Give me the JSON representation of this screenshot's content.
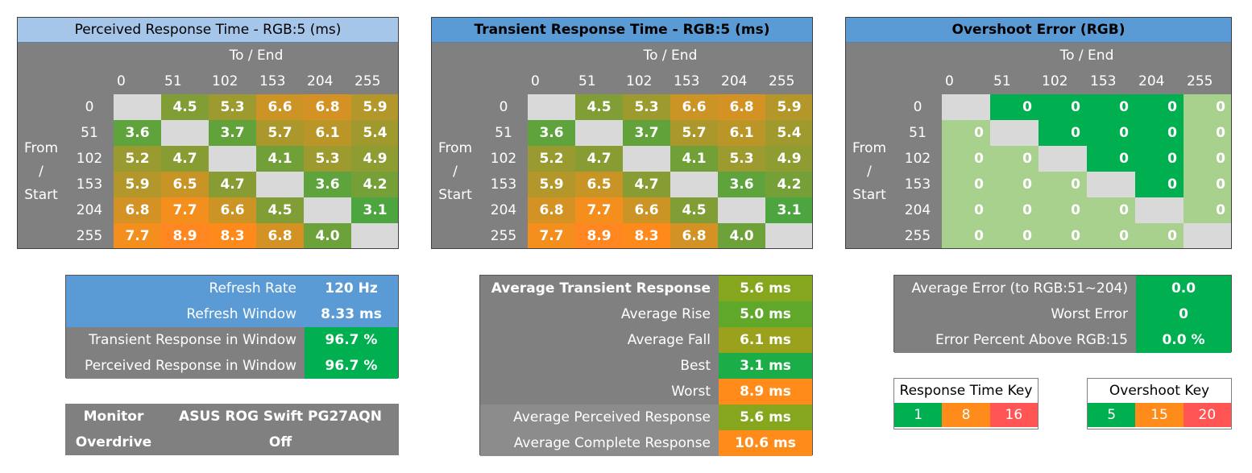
{
  "colors": {
    "gray": "#808080",
    "gray_light": "#8c8c8c",
    "diag": "#d9d9d9",
    "title_light": "#a5c5e9",
    "title_blue": "#5b9bd5",
    "green": "#00b050",
    "orange": "#ff8c1a",
    "red": "#ff5555",
    "ovs_light": "#a9d18e"
  },
  "chart_data": [
    {
      "type": "heatmap",
      "title": "Perceived Response Time - RGB:5 (ms)",
      "col_header": "To / End",
      "row_header": [
        "From",
        "/",
        "Start"
      ],
      "levels": [
        "0",
        "51",
        "102",
        "153",
        "204",
        "255"
      ],
      "values": [
        [
          null,
          4.5,
          5.3,
          6.6,
          6.8,
          5.9
        ],
        [
          3.6,
          null,
          3.7,
          5.7,
          6.1,
          5.4
        ],
        [
          5.2,
          4.7,
          null,
          4.1,
          5.3,
          4.9
        ],
        [
          5.9,
          6.5,
          4.7,
          null,
          3.6,
          4.2
        ],
        [
          6.8,
          7.7,
          6.6,
          4.5,
          null,
          3.1
        ],
        [
          7.7,
          8.9,
          8.3,
          6.8,
          4.0,
          null
        ]
      ]
    },
    {
      "type": "heatmap",
      "title": "Transient Response Time - RGB:5 (ms)",
      "col_header": "To / End",
      "row_header": [
        "From",
        "/",
        "Start"
      ],
      "levels": [
        "0",
        "51",
        "102",
        "153",
        "204",
        "255"
      ],
      "values": [
        [
          null,
          4.5,
          5.3,
          6.6,
          6.8,
          5.9
        ],
        [
          3.6,
          null,
          3.7,
          5.7,
          6.1,
          5.4
        ],
        [
          5.2,
          4.7,
          null,
          4.1,
          5.3,
          4.9
        ],
        [
          5.9,
          6.5,
          4.7,
          null,
          3.6,
          4.2
        ],
        [
          6.8,
          7.7,
          6.6,
          4.5,
          null,
          3.1
        ],
        [
          7.7,
          8.9,
          8.3,
          6.8,
          4.0,
          null
        ]
      ]
    },
    {
      "type": "heatmap",
      "title": "Overshoot Error (RGB)",
      "col_header": "To / End",
      "row_header": [
        "From",
        "/",
        "Start"
      ],
      "levels": [
        "0",
        "51",
        "102",
        "153",
        "204",
        "255"
      ],
      "values": [
        [
          null,
          0,
          0,
          0,
          0,
          0
        ],
        [
          0,
          null,
          0,
          0,
          0,
          0
        ],
        [
          0,
          0,
          null,
          0,
          0,
          0
        ],
        [
          0,
          0,
          0,
          null,
          0,
          0
        ],
        [
          0,
          0,
          0,
          0,
          null,
          0
        ],
        [
          0,
          0,
          0,
          0,
          0,
          null
        ]
      ]
    }
  ],
  "refresh_table": [
    {
      "label": "Refresh Rate",
      "value": "120 Hz",
      "label_bg": "#5b9bd5",
      "value_bg": "#5b9bd5"
    },
    {
      "label": "Refresh Window",
      "value": "8.33 ms",
      "label_bg": "#5b9bd5",
      "value_bg": "#5b9bd5"
    },
    {
      "label": "Transient Response in Window",
      "value": "96.7 %",
      "label_bg": "#808080",
      "value_bg": "#00b050"
    },
    {
      "label": "Perceived Response in Window",
      "value": "96.7 %",
      "label_bg": "#808080",
      "value_bg": "#00b050"
    }
  ],
  "monitor_table": [
    {
      "label": "Monitor",
      "value": "ASUS ROG Swift PG27AQN"
    },
    {
      "label": "Overdrive",
      "value": "Off"
    }
  ],
  "transient_summary": [
    {
      "label": "Average Transient Response",
      "value": "5.6 ms",
      "bold": true,
      "label_bg": "#808080",
      "value_bg": "#86a61e"
    },
    {
      "label": "Average Rise",
      "value": "5.0 ms",
      "bold": false,
      "label_bg": "#808080",
      "value_bg": "#5fa82a"
    },
    {
      "label": "Average Fall",
      "value": "6.1 ms",
      "bold": false,
      "label_bg": "#808080",
      "value_bg": "#9aa11c"
    },
    {
      "label": "Best",
      "value": "3.1 ms",
      "bold": false,
      "label_bg": "#808080",
      "value_bg": "#1bae48"
    },
    {
      "label": "Worst",
      "value": "8.9 ms",
      "bold": false,
      "label_bg": "#808080",
      "value_bg": "#ff8c1a"
    },
    {
      "label": "Average Perceived Response",
      "value": "5.6 ms",
      "bold": false,
      "label_bg": "#8c8c8c",
      "value_bg": "#86a61e"
    },
    {
      "label": "Average Complete Response",
      "value": "10.6 ms",
      "bold": false,
      "label_bg": "#8c8c8c",
      "value_bg": "#ff8c1a"
    }
  ],
  "error_summary": [
    {
      "label": "Average Error (to RGB:51~204)",
      "value": "0.0"
    },
    {
      "label": "Worst Error",
      "value": "0"
    },
    {
      "label": "Error Percent Above RGB:15",
      "value": "0.0 %"
    }
  ],
  "response_key": {
    "title": "Response Time Key",
    "values": [
      "1",
      "8",
      "16"
    ]
  },
  "overshoot_key": {
    "title": "Overshoot Key",
    "values": [
      "5",
      "15",
      "20"
    ]
  }
}
